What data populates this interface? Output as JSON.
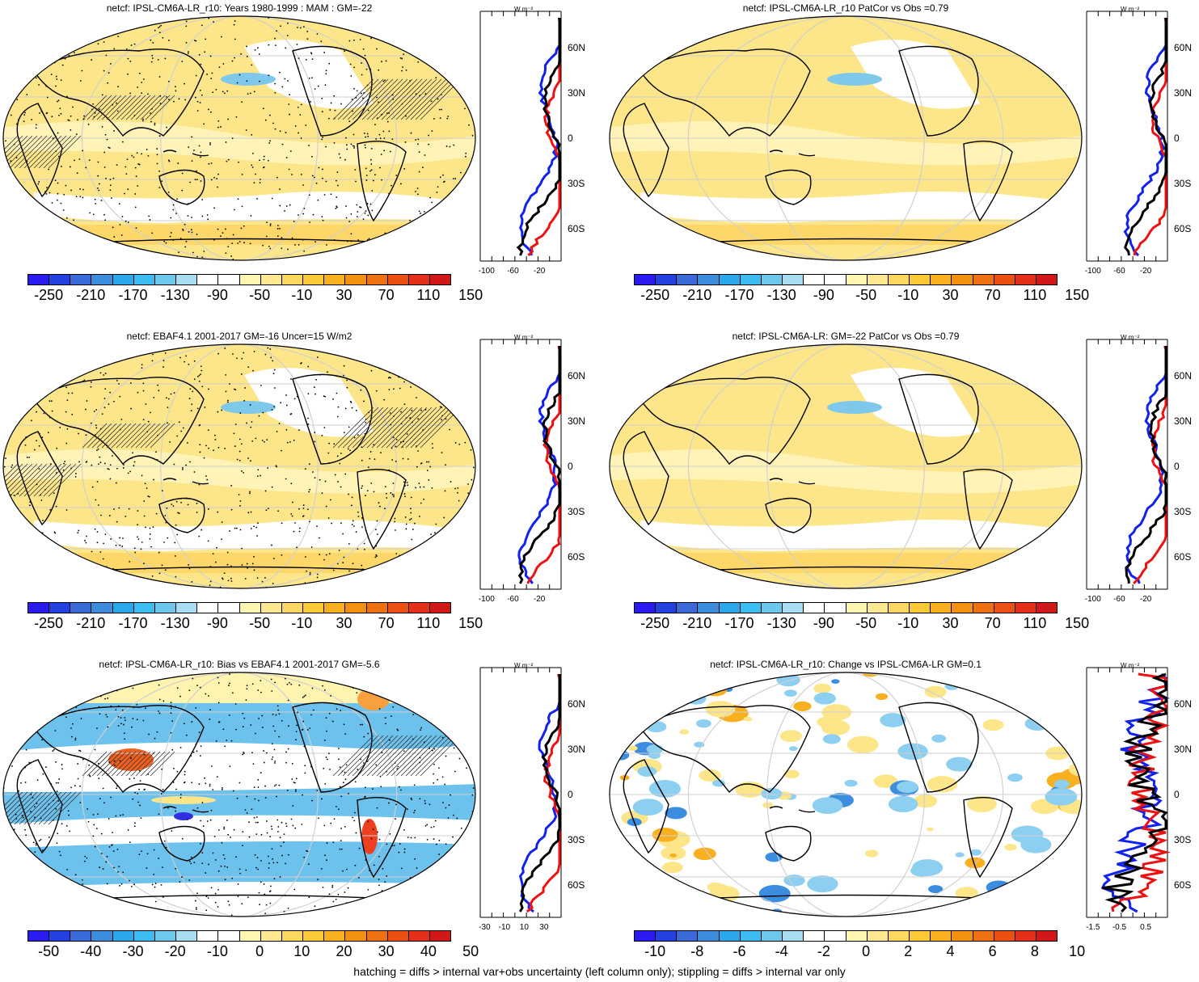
{
  "panels": [
    {
      "title": "netcf: IPSL-CM6A-LR_r10: Years 1980-1999 : MAM : GM=-22",
      "colorbar_labels": [
        "-250",
        "-210",
        "-170",
        "-130",
        "-90",
        "-50",
        "-10",
        "30",
        "70",
        "110",
        "150"
      ],
      "profile_x_ticks": [
        "-100",
        "-60",
        "-20"
      ],
      "profile_lat_labels": [
        "60N",
        "30N",
        "0",
        "30S",
        "60S"
      ],
      "units": "W m⁻²",
      "scheme": "mean",
      "hatch": true
    },
    {
      "title": "netcf: IPSL-CM6A-LR_r10 PatCor vs Obs =0.79",
      "colorbar_labels": [
        "-250",
        "-210",
        "-170",
        "-130",
        "-90",
        "-50",
        "-10",
        "30",
        "70",
        "110",
        "150"
      ],
      "profile_x_ticks": [
        "-100",
        "-60",
        "-20"
      ],
      "profile_lat_labels": [
        "60N",
        "30N",
        "0",
        "30S",
        "60S"
      ],
      "units": "W m⁻²",
      "scheme": "mean",
      "hatch": false
    },
    {
      "title": "netcf: EBAF4.1 2001-2017 GM=-16 Uncer=15 W/m2",
      "colorbar_labels": [
        "-250",
        "-210",
        "-170",
        "-130",
        "-90",
        "-50",
        "-10",
        "30",
        "70",
        "110",
        "150"
      ],
      "profile_x_ticks": [
        "-100",
        "-60",
        "-20"
      ],
      "profile_lat_labels": [
        "60N",
        "30N",
        "0",
        "30S",
        "60S"
      ],
      "units": "W m⁻²",
      "scheme": "mean",
      "hatch": true
    },
    {
      "title": "netcf: IPSL-CM6A-LR: GM=-22 PatCor vs Obs =0.79",
      "colorbar_labels": [
        "-250",
        "-210",
        "-170",
        "-130",
        "-90",
        "-50",
        "-10",
        "30",
        "70",
        "110",
        "150"
      ],
      "profile_x_ticks": [
        "-100",
        "-60",
        "-20"
      ],
      "profile_lat_labels": [
        "60N",
        "30N",
        "0",
        "30S",
        "60S"
      ],
      "units": "W m⁻²",
      "scheme": "mean",
      "hatch": false
    },
    {
      "title": "netcf: IPSL-CM6A-LR_r10: Bias vs EBAF4.1 2001-2017 GM=-5.6",
      "colorbar_labels": [
        "-50",
        "-40",
        "-30",
        "-20",
        "-10",
        "0",
        "10",
        "20",
        "30",
        "40",
        "50"
      ],
      "profile_x_ticks": [
        "-30",
        "-10",
        "10",
        "30"
      ],
      "profile_lat_labels": [
        "60N",
        "30N",
        "0",
        "30S",
        "60S"
      ],
      "units": "W m⁻²",
      "scheme": "bias",
      "hatch": true
    },
    {
      "title": "netcf: IPSL-CM6A-LR_r10: Change vs IPSL-CM6A-LR GM=0.1",
      "colorbar_labels": [
        "-10",
        "-8",
        "-6",
        "-4",
        "-2",
        "0",
        "2",
        "4",
        "6",
        "8",
        "10"
      ],
      "profile_x_ticks": [
        "-1.5",
        "-0.5",
        "0.5"
      ],
      "profile_lat_labels": [
        "60N",
        "30N",
        "0",
        "30S",
        "60S"
      ],
      "units": "W m⁻²",
      "scheme": "change",
      "hatch": false
    }
  ],
  "colorbar_colors": [
    "#2a1cf0",
    "#2440e0",
    "#3a6ad8",
    "#3c8ce0",
    "#2aa8ec",
    "#3cbcf0",
    "#6cc8ec",
    "#a8dcf0",
    "#ffffff",
    "#ffffff",
    "#fff6b0",
    "#ffe890",
    "#fdd860",
    "#fbc838",
    "#f8b020",
    "#f49010",
    "#ee7010",
    "#ea5010",
    "#e43018",
    "#d01818"
  ],
  "colors": {
    "mean_fill": "#fde68a",
    "white": "#ffffff",
    "blue_patch": "#7ec8ec",
    "bias_blue": "#6cc2ec",
    "line_red": "#ee1111",
    "line_blue": "#1122ee",
    "line_black": "#000000"
  },
  "footnote": "hatching = diffs > internal var+obs uncertainty (left column only); stippling = diffs > internal var only"
}
